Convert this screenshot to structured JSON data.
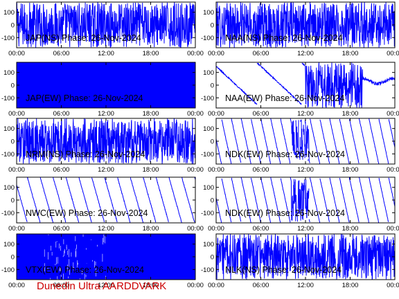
{
  "footer": "Dunedin Ultra AARDDVARK",
  "colors": {
    "trace": "#0000ff",
    "frame": "#000000",
    "footer": "#cc0000",
    "background": "#ffffff"
  },
  "chart_data": [
    {
      "type": "line",
      "title": "JAP(NS) Phase: 26-Nov-2024",
      "pattern": "noise",
      "x_ticks": [
        "00:00",
        "06:00",
        "12:00",
        "18:00",
        "00:00"
      ],
      "y_ticks": [
        "-100",
        "0",
        "100"
      ],
      "ylim": [
        -180,
        180
      ],
      "grid": false
    },
    {
      "type": "line",
      "title": "NAA(NS) Phase: 26-Nov-2024",
      "pattern": "noise",
      "x_ticks": [
        "00:00",
        "06:00",
        "12:00",
        "18:00",
        "00:00"
      ],
      "y_ticks": [
        "-100",
        "0",
        "100"
      ],
      "ylim": [
        -180,
        180
      ],
      "grid": false
    },
    {
      "type": "line",
      "title": "JAP(EW) Phase: 26-Nov-2024",
      "pattern": "solid",
      "x_ticks": [
        "00:00",
        "06:00",
        "12:00",
        "18:00",
        "00:00"
      ],
      "y_ticks": [
        "-100",
        "0",
        "100"
      ],
      "ylim": [
        -180,
        180
      ],
      "grid": false
    },
    {
      "type": "line",
      "title": "NAA(EW) Phase: 26-Nov-2024",
      "pattern": "naa_ew",
      "x_ticks": [
        "00:00",
        "06:00",
        "12:00",
        "18:00",
        "00:00"
      ],
      "y_ticks": [
        "-100",
        "0",
        "100"
      ],
      "ylim": [
        -180,
        180
      ],
      "grid": false
    },
    {
      "type": "line",
      "title": "NRM(NS) Phase: 26-Nov-2024",
      "pattern": "noise",
      "x_ticks": [
        "00:00",
        "06:00",
        "12:00",
        "18:00",
        "00:00"
      ],
      "y_ticks": [
        "-100",
        "0",
        "100"
      ],
      "ylim": [
        -180,
        180
      ],
      "grid": false
    },
    {
      "type": "line",
      "title": "NDK(EW) Phase: 26-Nov-2024",
      "pattern": "sawtooth_dense",
      "x_ticks": [
        "00:00",
        "06:00",
        "12:00",
        "18:00",
        "00:00"
      ],
      "y_ticks": [
        "-100",
        "0",
        "100"
      ],
      "ylim": [
        -180,
        180
      ],
      "grid": false
    },
    {
      "type": "line",
      "title": "NWC(EW) Phase: 26-Nov-2024",
      "pattern": "sawtooth_sparse",
      "x_ticks": [
        "00:00",
        "06:00",
        "12:00",
        "18:00",
        "00:00"
      ],
      "y_ticks": [
        "-100",
        "0",
        "100"
      ],
      "ylim": [
        -180,
        180
      ],
      "grid": false
    },
    {
      "type": "line",
      "title": "NDK(EW) Phase: 26-Nov-2024",
      "pattern": "sawtooth_dense",
      "x_ticks": [
        "00:00",
        "06:00",
        "12:00",
        "18:00",
        "00:00"
      ],
      "y_ticks": [
        "-100",
        "0",
        "100"
      ],
      "ylim": [
        -180,
        180
      ],
      "grid": false
    },
    {
      "type": "line",
      "title": "VTX(EW) Phase: 26-Nov-2024",
      "pattern": "solid",
      "x_ticks": [
        "00:00",
        "06:00",
        "12:00",
        "18:00",
        "00:00"
      ],
      "y_ticks": [
        "-100",
        "0",
        "100"
      ],
      "ylim": [
        -180,
        180
      ],
      "grid": false
    },
    {
      "type": "line",
      "title": "NLK(NS) Phase: 26-Nov-2024",
      "pattern": "noise",
      "x_ticks": [
        "00:00",
        "06:00",
        "12:00",
        "18:00",
        "00:00"
      ],
      "y_ticks": [
        "-100",
        "0",
        "100"
      ],
      "ylim": [
        -180,
        180
      ],
      "grid": false
    }
  ]
}
